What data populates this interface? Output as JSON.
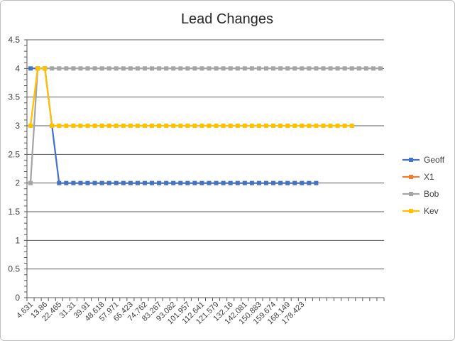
{
  "chart_data": {
    "type": "line",
    "title": "Lead Changes",
    "xlabel": "",
    "ylabel": "",
    "ylim": [
      0,
      4.5
    ],
    "yticks": [
      "0",
      "0.5",
      "1",
      "1.5",
      "2",
      "2.5",
      "3",
      "3.5",
      "4",
      "4.5"
    ],
    "x_tick_labels": [
      "4.631",
      "13.86",
      "22.465",
      "31.31",
      "39.91",
      "48.618",
      "57.971",
      "66.423",
      "74.762",
      "83.267",
      "93.082",
      "101.957",
      "112.641",
      "121.579",
      "132.16",
      "142.081",
      "150.883",
      "159.674",
      "168.149",
      "178.423"
    ],
    "category_count": 50,
    "grid": "horizontal",
    "legend_position": "right",
    "series": [
      {
        "name": "Geoff",
        "color": "#4472c4",
        "values": [
          4,
          4,
          4,
          3,
          2,
          2,
          2,
          2,
          2,
          2,
          2,
          2,
          2,
          2,
          2,
          2,
          2,
          2,
          2,
          2,
          2,
          2,
          2,
          2,
          2,
          2,
          2,
          2,
          2,
          2,
          2,
          2,
          2,
          2,
          2,
          2,
          2,
          2,
          2,
          2,
          2
        ]
      },
      {
        "name": "X1",
        "color": "#ed7d31",
        "values": []
      },
      {
        "name": "Bob",
        "color": "#a5a5a5",
        "values": [
          2,
          4,
          4,
          4,
          4,
          4,
          4,
          4,
          4,
          4,
          4,
          4,
          4,
          4,
          4,
          4,
          4,
          4,
          4,
          4,
          4,
          4,
          4,
          4,
          4,
          4,
          4,
          4,
          4,
          4,
          4,
          4,
          4,
          4,
          4,
          4,
          4,
          4,
          4,
          4,
          4,
          4,
          4,
          4,
          4,
          4,
          4,
          4,
          4,
          4
        ]
      },
      {
        "name": "Kev",
        "color": "#ffc000",
        "values": [
          3,
          4,
          4,
          3,
          3,
          3,
          3,
          3,
          3,
          3,
          3,
          3,
          3,
          3,
          3,
          3,
          3,
          3,
          3,
          3,
          3,
          3,
          3,
          3,
          3,
          3,
          3,
          3,
          3,
          3,
          3,
          3,
          3,
          3,
          3,
          3,
          3,
          3,
          3,
          3,
          3,
          3,
          3,
          3,
          3,
          3
        ]
      }
    ]
  }
}
